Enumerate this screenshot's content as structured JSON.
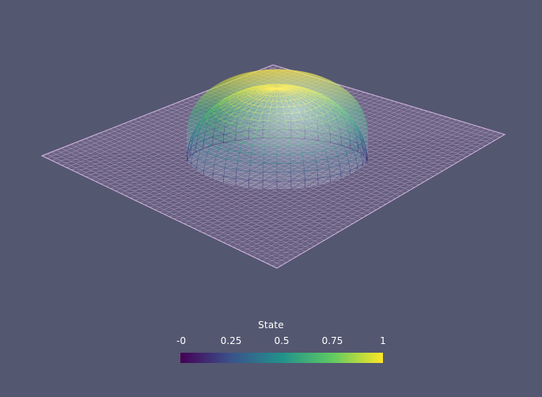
{
  "scene": {
    "background_color": "#535770",
    "mesh_color": "#c9a7d4",
    "dome_colormap": "viridis"
  },
  "colorbar": {
    "title": "State",
    "ticks": [
      "-0",
      "0.25",
      "0.5",
      "0.75",
      "1"
    ],
    "range": [
      0,
      1
    ],
    "colors": [
      "#440154",
      "#3b528b",
      "#21918c",
      "#5ec962",
      "#fde725"
    ]
  }
}
